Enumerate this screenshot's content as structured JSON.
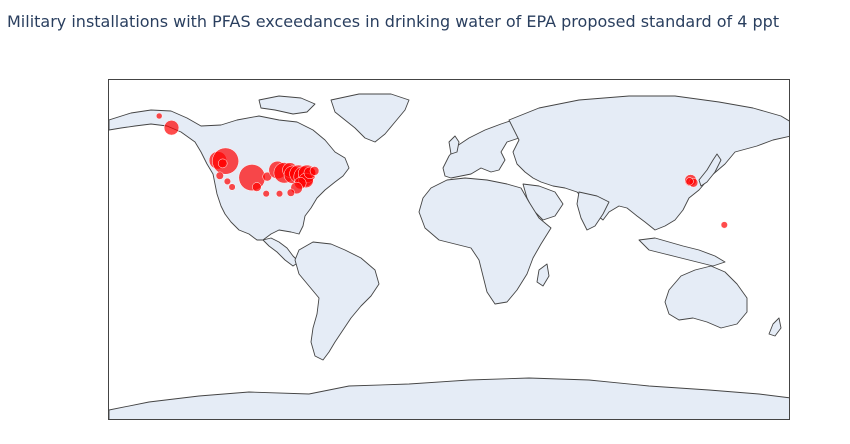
{
  "title": "Military installations with PFAS exceedances in drinking water of EPA proposed standard of 4 ppt",
  "colors": {
    "land": "#e5ecf6",
    "coastline": "#444444",
    "marker": "#ff0000",
    "title": "#2a3f5f"
  },
  "chart_data": {
    "type": "scatter-geo",
    "projection": "equirectangular",
    "title": "Military installations with PFAS exceedances in drinking water of EPA proposed standard of 4 ppt",
    "marker_color": "#ff0000",
    "marker_opacity": 0.7,
    "points": [
      {
        "lon": -153.5,
        "lat": 71.0,
        "size": 1
      },
      {
        "lon": -147.0,
        "lat": 64.8,
        "size": 4
      },
      {
        "lon": -122.5,
        "lat": 47.6,
        "size": 5
      },
      {
        "lon": -118.5,
        "lat": 47.2,
        "size": 8
      },
      {
        "lon": -120.0,
        "lat": 46.0,
        "size": 2
      },
      {
        "lon": -121.5,
        "lat": 39.5,
        "size": 1.5
      },
      {
        "lon": -117.5,
        "lat": 36.5,
        "size": 1.2
      },
      {
        "lon": -115.0,
        "lat": 33.5,
        "size": 1.2
      },
      {
        "lon": -104.5,
        "lat": 38.5,
        "size": 8
      },
      {
        "lon": -102.0,
        "lat": 33.5,
        "size": 2
      },
      {
        "lon": -96.5,
        "lat": 39.0,
        "size": 2
      },
      {
        "lon": -91.0,
        "lat": 42.5,
        "size": 5
      },
      {
        "lon": -87.5,
        "lat": 41.0,
        "size": 6
      },
      {
        "lon": -84.5,
        "lat": 42.5,
        "size": 4
      },
      {
        "lon": -83.0,
        "lat": 40.0,
        "size": 5
      },
      {
        "lon": -80.0,
        "lat": 40.5,
        "size": 5
      },
      {
        "lon": -77.0,
        "lat": 39.0,
        "size": 6
      },
      {
        "lon": -75.5,
        "lat": 40.5,
        "size": 5
      },
      {
        "lon": -76.0,
        "lat": 37.0,
        "size": 4
      },
      {
        "lon": -79.0,
        "lat": 35.5,
        "size": 3
      },
      {
        "lon": -81.0,
        "lat": 33.0,
        "size": 3
      },
      {
        "lon": -84.0,
        "lat": 30.5,
        "size": 1.5
      },
      {
        "lon": -74.0,
        "lat": 41.0,
        "size": 3
      },
      {
        "lon": -71.5,
        "lat": 42.0,
        "size": 2
      },
      {
        "lon": -97.0,
        "lat": 30.0,
        "size": 1.2
      },
      {
        "lon": -90.0,
        "lat": 30.0,
        "size": 1.2
      },
      {
        "lon": 127.0,
        "lat": 37.0,
        "size": 3
      },
      {
        "lon": 128.5,
        "lat": 35.8,
        "size": 2
      },
      {
        "lon": 126.5,
        "lat": 36.5,
        "size": 1.5
      },
      {
        "lon": 144.8,
        "lat": 13.5,
        "size": 1.2
      }
    ]
  }
}
